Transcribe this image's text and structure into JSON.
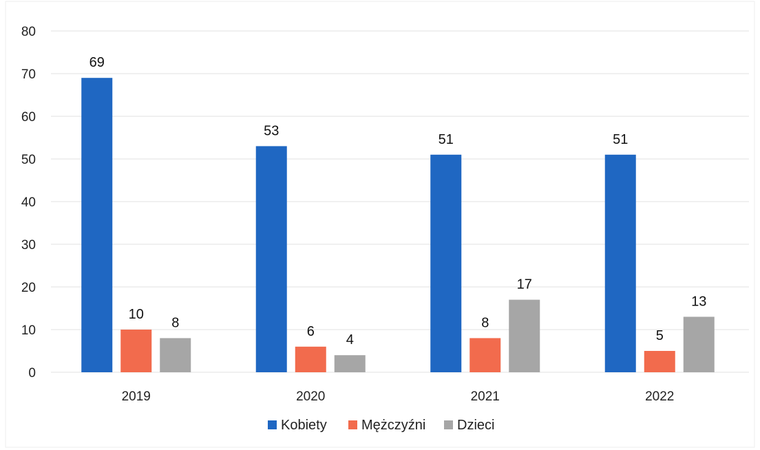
{
  "chart_data": {
    "type": "bar",
    "title": "",
    "xlabel": "",
    "ylabel": "",
    "categories": [
      "2019",
      "2020",
      "2021",
      "2022"
    ],
    "series": [
      {
        "name": "Kobiety",
        "color": "#1f67c2",
        "values": [
          69,
          53,
          51,
          51
        ],
        "labels": [
          "69",
          "53",
          "51",
          "51"
        ]
      },
      {
        "name": "Mężczyźni",
        "color": "#f26b4d",
        "values": [
          10,
          6,
          8,
          5
        ],
        "labels": [
          "10",
          "6",
          "8",
          "5"
        ]
      },
      {
        "name": "Dzieci",
        "color": "#a6a6a6",
        "values": [
          8,
          4,
          17,
          13
        ],
        "labels": [
          "8",
          "4",
          "17",
          "13"
        ]
      }
    ],
    "ylim": [
      0,
      80
    ],
    "yticks": [
      "0",
      "10",
      "20",
      "30",
      "40",
      "50",
      "60",
      "70",
      "80"
    ],
    "grid": true,
    "legend_position": "bottom"
  }
}
